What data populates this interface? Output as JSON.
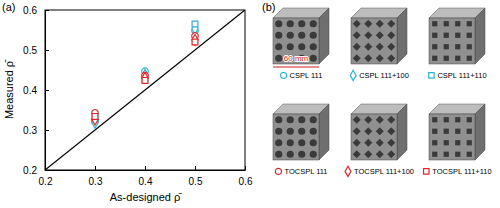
{
  "chart_data": {
    "type": "scatter",
    "title": "(a)",
    "x_label": "As-designed ρ̄",
    "y_label": "Measured ρ̄",
    "xlim": [
      0.2,
      0.6
    ],
    "ylim": [
      0.2,
      0.6
    ],
    "xticks": [
      0.2,
      0.3,
      0.4,
      0.5,
      0.6
    ],
    "yticks": [
      0.2,
      0.3,
      0.4,
      0.5,
      0.6
    ],
    "grid": false,
    "legend": "right",
    "series": [
      {
        "type": "line",
        "color": "#000000",
        "line_style": "solid",
        "x": [
          0.2,
          0.6
        ],
        "values": [
          0.2,
          0.6
        ]
      },
      {
        "name": "CSPL 111",
        "color": "#2fb3d3",
        "marker": "circle",
        "x": [
          0.3,
          0.4,
          0.5
        ],
        "values": [
          0.322,
          0.447,
          0.548
        ]
      },
      {
        "name": "CSPL 111+100",
        "color": "#2fb3d3",
        "marker": "diamond",
        "x": [
          0.3,
          0.4,
          0.5
        ],
        "values": [
          0.318,
          0.438,
          0.553
        ]
      },
      {
        "name": "CSPL 111+110",
        "color": "#2fb3d3",
        "marker": "square",
        "x": [
          0.3,
          0.4,
          0.5
        ],
        "values": [
          0.328,
          0.428,
          0.565
        ]
      },
      {
        "name": "TOCSPL 111",
        "color": "#e0282a",
        "marker": "circle",
        "x": [
          0.3,
          0.4,
          0.5
        ],
        "values": [
          0.343,
          0.436,
          0.535
        ]
      },
      {
        "name": "TOCSPL 111+100",
        "color": "#e0282a",
        "marker": "diamond",
        "x": [
          0.3,
          0.4,
          0.5
        ],
        "values": [
          0.326,
          0.43,
          0.525
        ]
      },
      {
        "name": "TOCSPL 111+110",
        "color": "#e0282a",
        "marker": "square",
        "x": [
          0.3,
          0.4,
          0.5
        ],
        "values": [
          0.334,
          0.424,
          0.52
        ]
      }
    ]
  },
  "photos": {
    "label": "(b)",
    "scale_bar": "60 mm"
  }
}
